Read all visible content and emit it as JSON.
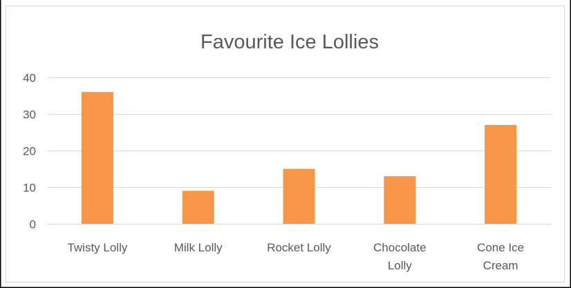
{
  "chart_data": {
    "type": "bar",
    "title": "Favourite Ice Lollies",
    "categories": [
      "Twisty Lolly",
      "Milk Lolly",
      "Rocket Lolly",
      "Chocolate Lolly",
      "Cone Ice Cream"
    ],
    "category_label_lines": [
      [
        "Twisty Lolly"
      ],
      [
        "Milk Lolly"
      ],
      [
        "Rocket Lolly"
      ],
      [
        "Chocolate",
        "Lolly"
      ],
      [
        "Cone Ice",
        "Cream"
      ]
    ],
    "values": [
      36,
      9,
      15,
      13,
      27
    ],
    "ylim": [
      0,
      40
    ],
    "yticks": [
      0,
      10,
      20,
      30,
      40
    ],
    "grid": true,
    "legend": "none",
    "colors": {
      "bar": "#F79646",
      "grid": "#D9D9D9",
      "text": "#595959",
      "frame": "#000000",
      "chart_border": "#D9D9D9"
    }
  }
}
